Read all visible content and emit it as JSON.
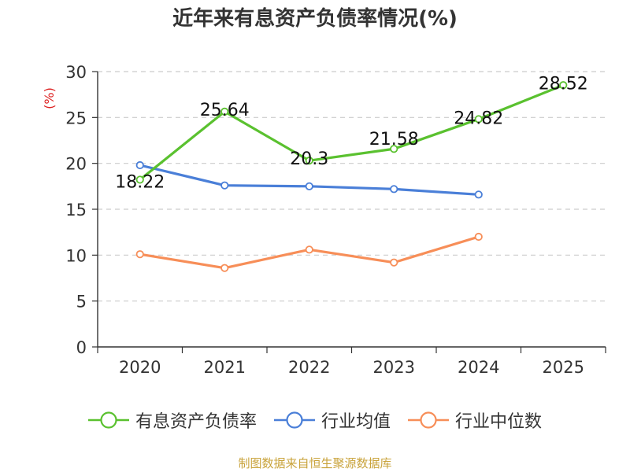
{
  "title": "近年来有息资产负债率情况(%)",
  "source_note": "制图数据来自恒生聚源数据库",
  "chart_data": {
    "type": "line",
    "title": "近年来有息资产负债率情况(%)",
    "ylabel": "(%)",
    "xlabel": "",
    "categories": [
      "2020",
      "2021",
      "2022",
      "2023",
      "2024",
      "2025"
    ],
    "ylim": [
      0,
      30
    ],
    "yticks": [
      0,
      5,
      10,
      15,
      20,
      25,
      30
    ],
    "grid": true,
    "legend_position": "bottom",
    "series": [
      {
        "name": "有息资产负债率",
        "color": "#5ac12f",
        "values": [
          18.22,
          25.64,
          20.3,
          21.58,
          24.82,
          28.52
        ],
        "labels": [
          "18.22",
          "25.64",
          "20.3",
          "21.58",
          "24.82",
          "28.52"
        ]
      },
      {
        "name": "行业均值",
        "color": "#4a7fd8",
        "values": [
          19.8,
          17.6,
          17.5,
          17.2,
          16.6,
          null
        ]
      },
      {
        "name": "行业中位数",
        "color": "#f78e58",
        "values": [
          10.1,
          8.6,
          10.6,
          9.2,
          12.0,
          null
        ]
      }
    ]
  }
}
